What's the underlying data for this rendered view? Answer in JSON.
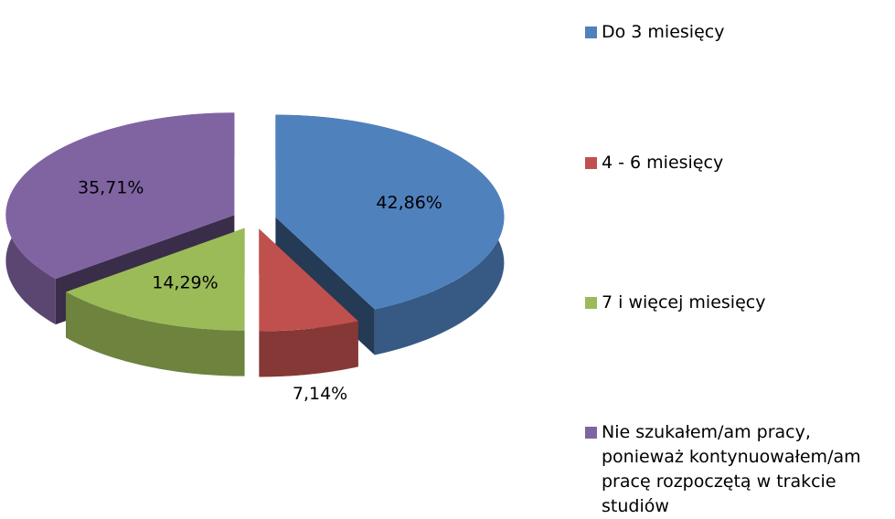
{
  "chart_data": {
    "type": "pie",
    "categories": [
      "Do 3 miesięcy",
      "4 - 6 miesięcy",
      "7 i więcej miesięcy",
      "Nie szukałem/am pracy, ponieważ kontynuowałem/am pracę rozpoczętą w trakcie studiów"
    ],
    "values": [
      42.86,
      7.14,
      14.29,
      35.71
    ],
    "value_labels": [
      "42,86%",
      "7,14%",
      "14,29%",
      "35,71%"
    ],
    "colors": [
      "#4f81bd",
      "#c0504d",
      "#9bbb59",
      "#8064a2"
    ],
    "legend": "right"
  }
}
